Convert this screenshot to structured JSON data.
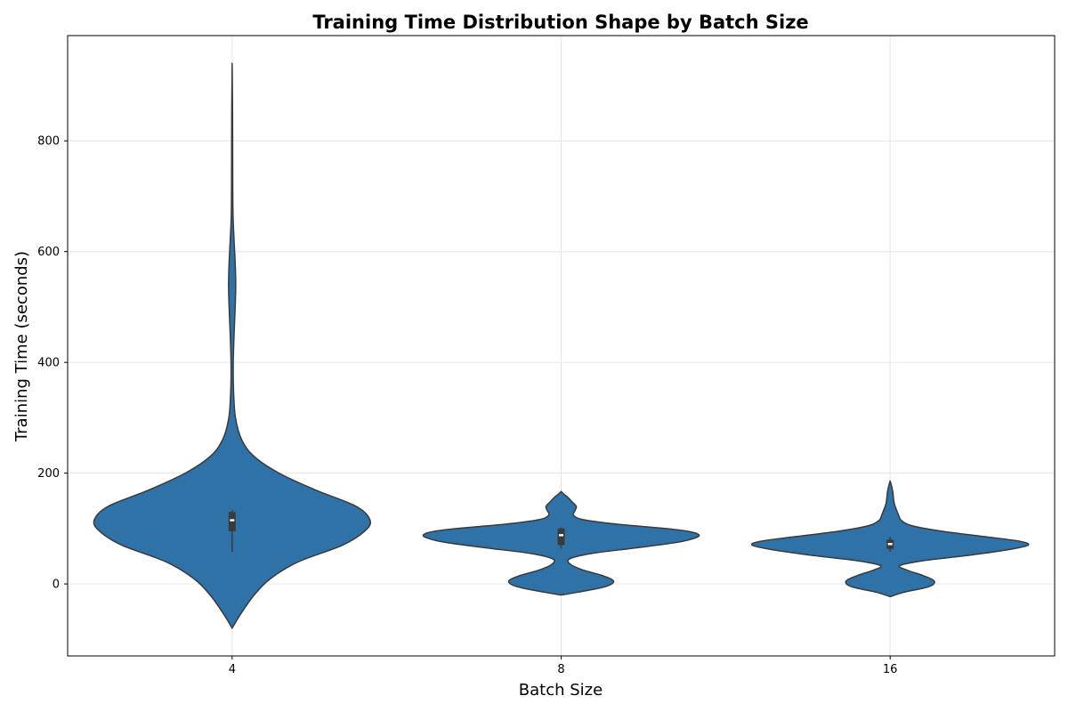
{
  "chart_data": {
    "type": "violin",
    "title": "Training Time Distribution Shape by Batch Size",
    "xlabel": "Batch Size",
    "ylabel": "Training Time (seconds)",
    "categories": [
      "4",
      "8",
      "16"
    ],
    "ylim": [
      -130,
      990
    ],
    "yticks": [
      0,
      200,
      400,
      600,
      800
    ],
    "grid": true,
    "color": "#2e72a8",
    "edge_color": "#3a3a3a",
    "violins": [
      {
        "category": "4",
        "min": -80,
        "max": 940,
        "q1": 95,
        "median": 115,
        "q3": 130,
        "whisker_low": 58,
        "whisker_high": 133,
        "density": [
          [
            -80,
            0.0
          ],
          [
            -55,
            0.03
          ],
          [
            -20,
            0.08
          ],
          [
            10,
            0.14
          ],
          [
            40,
            0.24
          ],
          [
            70,
            0.4
          ],
          [
            95,
            0.48
          ],
          [
            115,
            0.5
          ],
          [
            140,
            0.45
          ],
          [
            170,
            0.3
          ],
          [
            200,
            0.17
          ],
          [
            230,
            0.08
          ],
          [
            260,
            0.035
          ],
          [
            300,
            0.012
          ],
          [
            350,
            0.005
          ],
          [
            400,
            0.004
          ],
          [
            450,
            0.007
          ],
          [
            500,
            0.011
          ],
          [
            540,
            0.013
          ],
          [
            580,
            0.011
          ],
          [
            620,
            0.007
          ],
          [
            670,
            0.003
          ],
          [
            750,
            0.002
          ],
          [
            850,
            0.0015
          ],
          [
            940,
            0.0
          ]
        ]
      },
      {
        "category": "8",
        "min": -20,
        "max": 167,
        "q1": 70,
        "median": 88,
        "q3": 100,
        "whisker_low": 64,
        "whisker_high": 102,
        "density": [
          [
            -20,
            0.0
          ],
          [
            -15,
            0.06
          ],
          [
            -5,
            0.16
          ],
          [
            5,
            0.19
          ],
          [
            15,
            0.15
          ],
          [
            25,
            0.08
          ],
          [
            35,
            0.035
          ],
          [
            45,
            0.03
          ],
          [
            55,
            0.11
          ],
          [
            65,
            0.27
          ],
          [
            75,
            0.42
          ],
          [
            82,
            0.48
          ],
          [
            88,
            0.5
          ],
          [
            94,
            0.47
          ],
          [
            100,
            0.38
          ],
          [
            108,
            0.2
          ],
          [
            116,
            0.08
          ],
          [
            124,
            0.045
          ],
          [
            132,
            0.05
          ],
          [
            140,
            0.055
          ],
          [
            148,
            0.04
          ],
          [
            156,
            0.025
          ],
          [
            162,
            0.01
          ],
          [
            167,
            0.0
          ]
        ]
      },
      {
        "category": "16",
        "min": -23,
        "max": 186,
        "q1": 63,
        "median": 72,
        "q3": 80,
        "whisker_low": 58,
        "whisker_high": 85,
        "density": [
          [
            -23,
            0.0
          ],
          [
            -15,
            0.05
          ],
          [
            -5,
            0.14
          ],
          [
            5,
            0.16
          ],
          [
            15,
            0.12
          ],
          [
            25,
            0.06
          ],
          [
            33,
            0.035
          ],
          [
            42,
            0.12
          ],
          [
            52,
            0.29
          ],
          [
            62,
            0.43
          ],
          [
            70,
            0.5
          ],
          [
            77,
            0.47
          ],
          [
            85,
            0.35
          ],
          [
            95,
            0.19
          ],
          [
            105,
            0.08
          ],
          [
            115,
            0.04
          ],
          [
            125,
            0.03
          ],
          [
            135,
            0.022
          ],
          [
            145,
            0.015
          ],
          [
            155,
            0.012
          ],
          [
            165,
            0.01
          ],
          [
            175,
            0.006
          ],
          [
            186,
            0.0
          ]
        ]
      }
    ]
  }
}
